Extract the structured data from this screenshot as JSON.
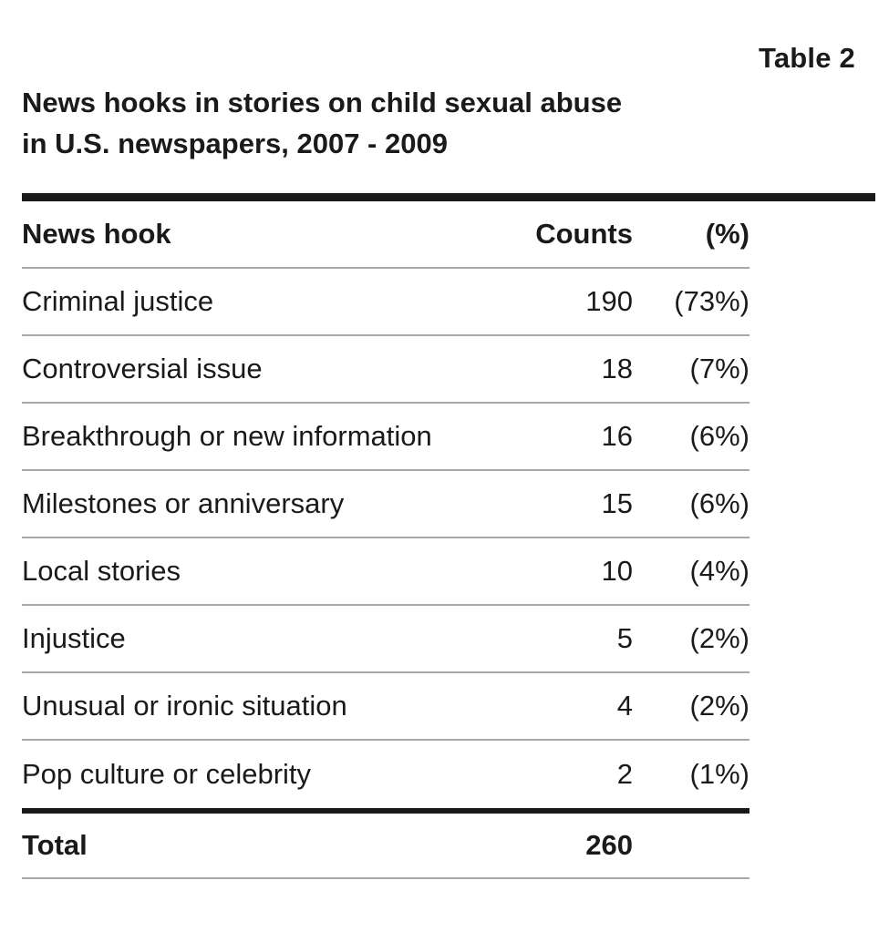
{
  "table_label": "Table 2",
  "title_lines": [
    "News hooks in stories on child sexual abuse",
    "in U.S. newspapers, 2007 - 2009"
  ],
  "chart_data": {
    "type": "table",
    "title": "News hooks in stories on child sexual abuse in U.S. newspapers, 2007 - 2009",
    "columns": [
      "News hook",
      "Counts",
      "(%)"
    ],
    "rows": [
      {
        "hook": "Criminal justice",
        "count": "190",
        "pct": "(73%)"
      },
      {
        "hook": "Controversial issue",
        "count": "18",
        "pct": "(7%)"
      },
      {
        "hook": "Breakthrough or new information",
        "count": "16",
        "pct": "(6%)"
      },
      {
        "hook": "Milestones or anniversary",
        "count": "15",
        "pct": "(6%)"
      },
      {
        "hook": "Local stories",
        "count": "10",
        "pct": "(4%)"
      },
      {
        "hook": "Injustice",
        "count": "5",
        "pct": "(2%)"
      },
      {
        "hook": "Unusual or ironic situation",
        "count": "4",
        "pct": "(2%)"
      },
      {
        "hook": "Pop culture or celebrity",
        "count": "2",
        "pct": "(1%)"
      }
    ],
    "total": {
      "label": "Total",
      "count": "260"
    }
  }
}
